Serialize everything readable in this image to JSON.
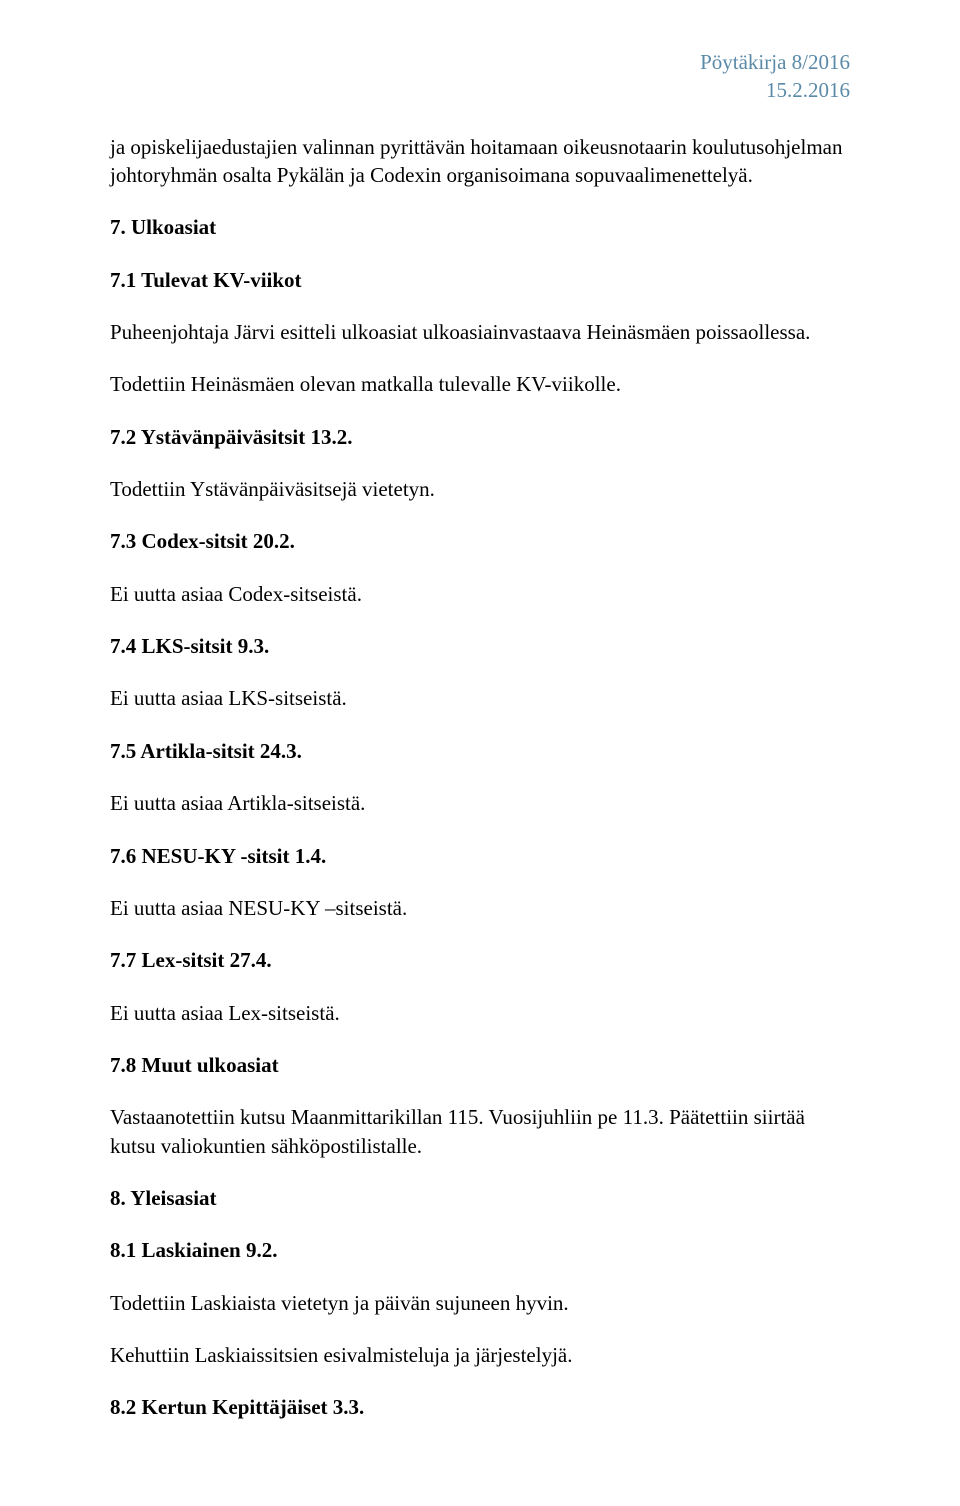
{
  "header": {
    "title": "Pöytäkirja 8/2016",
    "date": "15.2.2016",
    "title_color": "#5a8aa8"
  },
  "intro": "ja opiskelijaedustajien valinnan pyrittävän hoitamaan oikeusnotaarin koulutusohjelman johtoryhmän osalta Pykälän ja Codexin organisoimana sopuvaalimenettelyä.",
  "s7": {
    "title": "7. Ulkoasiat",
    "s71": {
      "title": "7.1 Tulevat KV-viikot",
      "p1": "Puheenjohtaja Järvi esitteli ulkoasiat ulkoasiainvastaava Heinäsmäen poissaollessa.",
      "p2": "Todettiin Heinäsmäen olevan matkalla tulevalle KV-viikolle."
    },
    "s72": {
      "title": "7.2 Ystävänpäiväsitsit 13.2.",
      "p1": "Todettiin Ystävänpäiväsitsejä vietetyn."
    },
    "s73": {
      "title": "7.3 Codex-sitsit 20.2.",
      "p1": "Ei uutta asiaa Codex-sitseistä."
    },
    "s74": {
      "title": "7.4 LKS-sitsit 9.3.",
      "p1": "Ei uutta asiaa LKS-sitseistä."
    },
    "s75": {
      "title": "7.5 Artikla-sitsit 24.3.",
      "p1": "Ei uutta asiaa Artikla-sitseistä."
    },
    "s76": {
      "title": "7.6 NESU-KY -sitsit 1.4.",
      "p1": "Ei uutta asiaa NESU-KY –sitseistä."
    },
    "s77": {
      "title": "7.7 Lex-sitsit 27.4.",
      "p1": "Ei uutta asiaa Lex-sitseistä."
    },
    "s78": {
      "title": "7.8 Muut ulkoasiat",
      "p1": "Vastaanotettiin kutsu Maanmittarikillan 115. Vuosijuhliin pe 11.3. Päätettiin siirtää kutsu valiokuntien sähköpostilistalle."
    }
  },
  "s8": {
    "title": "8. Yleisasiat",
    "s81": {
      "title": "8.1 Laskiainen 9.2.",
      "p1": "Todettiin Laskiaista vietetyn ja päivän sujuneen hyvin.",
      "p2": "Kehuttiin Laskiaissitsien esivalmisteluja ja järjestelyjä."
    },
    "s82": {
      "title": "8.2 Kertun Kepittäjäiset 3.3."
    }
  }
}
